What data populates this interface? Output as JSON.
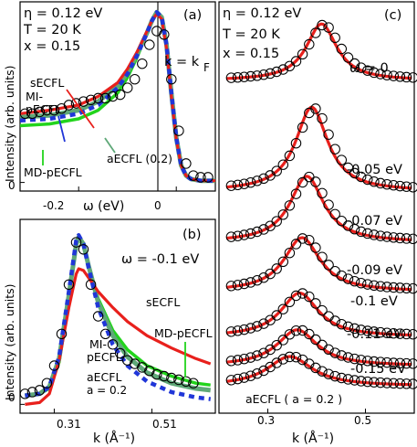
{
  "colors": {
    "sECFL": "#e8201c",
    "MI_pECFL": "#2036d8",
    "aECFL": "#5fa878",
    "MD_pECFL": "#22d41c",
    "data_points": "#000000"
  },
  "chart_data": [
    {
      "panel": "(a)",
      "type": "line",
      "annotations": [
        "η = 0.12 eV",
        "T = 20 K",
        "x = 0.15",
        "k = k",
        "F"
      ],
      "xlabel": "ω (eV)",
      "ylabel": "Intensity (arb. units)",
      "xlim": [
        -0.32,
        0.08
      ],
      "ylim": [
        -0.05,
        1.05
      ],
      "xticks": [
        -0.2,
        0
      ],
      "xtick_labels": [
        "-0.2",
        "0"
      ],
      "yticks": [
        0
      ],
      "ytick_labels": [
        "0"
      ],
      "data": {
        "x": [
          -0.31,
          -0.295,
          -0.28,
          -0.265,
          -0.25,
          -0.235,
          -0.22,
          -0.205,
          -0.19,
          -0.175,
          -0.16,
          -0.145,
          -0.13,
          -0.115,
          -0.1,
          -0.085,
          -0.07,
          -0.055,
          -0.04,
          -0.025,
          -0.01,
          0.005,
          0.02,
          0.035,
          0.05,
          0.065
        ],
        "y": [
          0.4,
          0.4,
          0.41,
          0.42,
          0.42,
          0.43,
          0.45,
          0.46,
          0.47,
          0.48,
          0.49,
          0.49,
          0.5,
          0.51,
          0.55,
          0.6,
          0.69,
          0.8,
          0.88,
          0.86,
          0.6,
          0.3,
          0.11,
          0.04,
          0.03,
          0.03
        ]
      },
      "series": [
        {
          "name": "sECFL",
          "x": [
            -0.32,
            -0.26,
            -0.2,
            -0.16,
            -0.12,
            -0.1,
            -0.08,
            -0.06,
            -0.05,
            -0.04,
            -0.03,
            -0.02,
            -0.01,
            0,
            0.01,
            0.02,
            0.03,
            0.05,
            0.08
          ],
          "y": [
            0.4,
            0.42,
            0.45,
            0.5,
            0.58,
            0.66,
            0.76,
            0.88,
            0.94,
            0.98,
            0.95,
            0.78,
            0.5,
            0.25,
            0.1,
            0.04,
            0.02,
            0.01,
            0.01
          ]
        },
        {
          "name": "MI-pECFL",
          "x": [
            -0.32,
            -0.26,
            -0.2,
            -0.16,
            -0.12,
            -0.1,
            -0.08,
            -0.06,
            -0.05,
            -0.04,
            -0.03,
            -0.02,
            -0.01,
            0,
            0.01,
            0.02,
            0.03,
            0.05,
            0.08
          ],
          "y": [
            0.36,
            0.37,
            0.4,
            0.45,
            0.55,
            0.63,
            0.74,
            0.87,
            0.94,
            0.99,
            0.96,
            0.8,
            0.52,
            0.26,
            0.1,
            0.04,
            0.02,
            0.01,
            0.01
          ]
        },
        {
          "name": "MD-pECFL",
          "x": [
            -0.32,
            -0.26,
            -0.2,
            -0.16,
            -0.12,
            -0.1,
            -0.08,
            -0.06,
            -0.05,
            -0.04,
            -0.03,
            -0.02,
            -0.01,
            0,
            0.01,
            0.02,
            0.03,
            0.05,
            0.08
          ],
          "y": [
            0.33,
            0.34,
            0.37,
            0.42,
            0.52,
            0.61,
            0.73,
            0.87,
            0.94,
            0.99,
            0.96,
            0.8,
            0.52,
            0.26,
            0.1,
            0.04,
            0.02,
            0.01,
            0.01
          ]
        },
        {
          "name": "aECFL (0.2)",
          "x": [
            -0.32,
            -0.26,
            -0.2,
            -0.16,
            -0.12,
            -0.1,
            -0.08,
            -0.06,
            -0.05,
            -0.04,
            -0.03,
            -0.02,
            -0.01,
            0,
            0.01,
            0.02,
            0.03,
            0.05,
            0.08
          ],
          "y": [
            0.38,
            0.39,
            0.42,
            0.47,
            0.56,
            0.64,
            0.75,
            0.87,
            0.94,
            0.99,
            0.96,
            0.8,
            0.52,
            0.26,
            0.1,
            0.04,
            0.02,
            0.01,
            0.01
          ]
        }
      ],
      "labels": {
        "sECFL": "sECFL",
        "MI1": "MI-",
        "MI2": "pECFL",
        "MD": "MD-pECFL",
        "aECFL": "aECFL (0.2)"
      }
    },
    {
      "panel": "(b)",
      "type": "line",
      "annotations": [
        "ω = -0.1 eV"
      ],
      "xlabel": "k (Å⁻¹)",
      "ylabel": "Intensity (arb. units)",
      "xlim": [
        0.24,
        0.64
      ],
      "ylim": [
        -0.05,
        1.05
      ],
      "xticks": [
        0.31,
        0.51
      ],
      "xtick_labels": [
        "0.31",
        "0.51"
      ],
      "yticks": [
        0
      ],
      "ytick_labels": [
        "0"
      ],
      "data": {
        "x": [
          0.25,
          0.265,
          0.28,
          0.295,
          0.31,
          0.325,
          0.34,
          0.355,
          0.37,
          0.385,
          0.4,
          0.415,
          0.43,
          0.445,
          0.46,
          0.475,
          0.49,
          0.505,
          0.52,
          0.535,
          0.55,
          0.565,
          0.58,
          0.595
        ],
        "y": [
          0.06,
          0.07,
          0.08,
          0.12,
          0.22,
          0.4,
          0.68,
          0.92,
          0.88,
          0.68,
          0.5,
          0.4,
          0.34,
          0.29,
          0.25,
          0.23,
          0.21,
          0.19,
          0.17,
          0.16,
          0.15,
          0.14,
          0.13,
          0.12
        ]
      },
      "series": [
        {
          "name": "sECFL",
          "x": [
            0.25,
            0.28,
            0.3,
            0.32,
            0.34,
            0.355,
            0.36,
            0.37,
            0.38,
            0.4,
            0.43,
            0.46,
            0.5,
            0.55,
            0.6,
            0.63
          ],
          "y": [
            0.0,
            0.01,
            0.06,
            0.25,
            0.55,
            0.74,
            0.77,
            0.76,
            0.72,
            0.64,
            0.55,
            0.47,
            0.39,
            0.32,
            0.26,
            0.23
          ]
        },
        {
          "name": "MI-pECFL",
          "x": [
            0.25,
            0.28,
            0.3,
            0.32,
            0.34,
            0.355,
            0.36,
            0.37,
            0.38,
            0.4,
            0.43,
            0.46,
            0.5,
            0.55,
            0.6,
            0.63
          ],
          "y": [
            0.05,
            0.06,
            0.1,
            0.27,
            0.64,
            0.93,
            0.96,
            0.91,
            0.78,
            0.55,
            0.34,
            0.22,
            0.13,
            0.07,
            0.04,
            0.03
          ]
        },
        {
          "name": "MD-pECFL",
          "x": [
            0.25,
            0.28,
            0.3,
            0.32,
            0.34,
            0.355,
            0.36,
            0.37,
            0.38,
            0.4,
            0.43,
            0.46,
            0.5,
            0.55,
            0.6,
            0.63
          ],
          "y": [
            0.05,
            0.06,
            0.09,
            0.24,
            0.6,
            0.9,
            0.94,
            0.9,
            0.79,
            0.6,
            0.42,
            0.31,
            0.22,
            0.16,
            0.12,
            0.11
          ]
        },
        {
          "name": "aECFL a = 0.2",
          "x": [
            0.25,
            0.28,
            0.3,
            0.32,
            0.34,
            0.355,
            0.36,
            0.37,
            0.38,
            0.4,
            0.43,
            0.46,
            0.5,
            0.55,
            0.6,
            0.63
          ],
          "y": [
            0.05,
            0.06,
            0.1,
            0.26,
            0.62,
            0.91,
            0.95,
            0.91,
            0.79,
            0.58,
            0.39,
            0.27,
            0.18,
            0.12,
            0.09,
            0.08
          ]
        }
      ],
      "labels": {
        "sECFL": "sECFL",
        "MD": "MD-pECFL",
        "MI1": "MI-",
        "MI2": "pECFL",
        "aECFL1": "aECFL",
        "aECFL2": "a = 0.2"
      }
    },
    {
      "panel": "(c)",
      "type": "line",
      "annotations": [
        "η = 0.12 eV",
        "T = 20 K",
        "x = 0.15",
        "aECFL ( a = 0.2 )"
      ],
      "xlabel": "k (Å⁻¹)",
      "xlim": [
        0.2,
        0.6
      ],
      "xticks": [
        0.3,
        0.5
      ],
      "xtick_labels": [
        "0.3",
        "0.5"
      ],
      "fit_series_name": "aECFL ( a = 0.2 )",
      "curves": [
        {
          "label": "ω = 0",
          "center": 0.41,
          "width": 0.038,
          "amp": 1.0,
          "bg": 0.03,
          "data_center": 0.415
        },
        {
          "label": "-0.05 eV",
          "center": 0.39,
          "width": 0.04,
          "amp": 1.0,
          "bg": 0.03,
          "data_center": 0.395
        },
        {
          "label": "-0.07 eV",
          "center": 0.38,
          "width": 0.042,
          "amp": 0.95,
          "bg": 0.04,
          "data_center": 0.385
        },
        {
          "label": "-0.09 eV",
          "center": 0.37,
          "width": 0.045,
          "amp": 0.95,
          "bg": 0.05,
          "data_center": 0.375
        },
        {
          "label": "-0.1 eV",
          "center": 0.365,
          "width": 0.047,
          "amp": 0.92,
          "bg": 0.05,
          "data_center": 0.37
        },
        {
          "label": "-0.11 eV",
          "center": 0.36,
          "width": 0.05,
          "amp": 0.9,
          "bg": 0.06,
          "data_center": 0.365
        },
        {
          "label": "-0.15 eV",
          "center": 0.345,
          "width": 0.056,
          "amp": 0.85,
          "bg": 0.07,
          "data_center": 0.35
        }
      ]
    }
  ]
}
